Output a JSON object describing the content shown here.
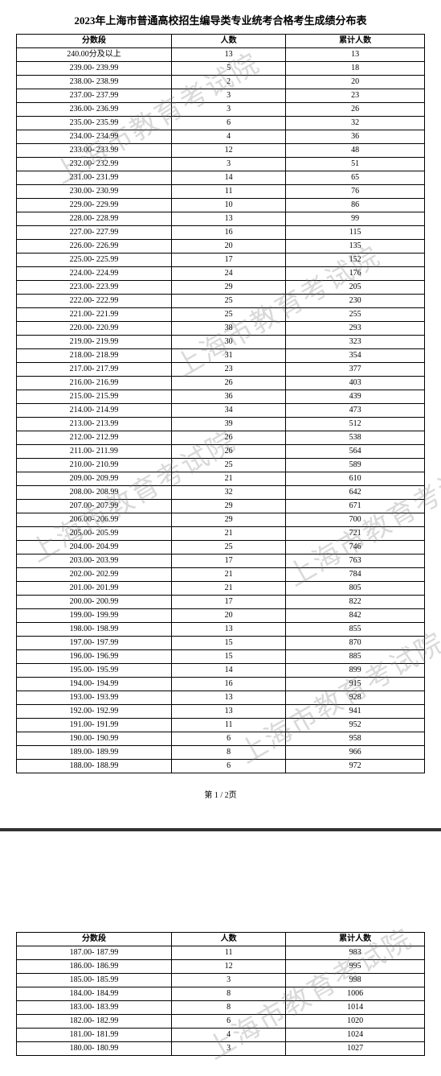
{
  "title": "2023年上海市普通高校招生编导类专业统考合格考生成绩分布表",
  "columns": [
    "分数段",
    "人数",
    "累计人数"
  ],
  "page1_rows": [
    [
      "240.00分及以上",
      "13",
      "13"
    ],
    [
      "239.00- 239.99",
      "5",
      "18"
    ],
    [
      "238.00- 238.99",
      "2",
      "20"
    ],
    [
      "237.00- 237.99",
      "3",
      "23"
    ],
    [
      "236.00- 236.99",
      "3",
      "26"
    ],
    [
      "235.00- 235.99",
      "6",
      "32"
    ],
    [
      "234.00- 234.99",
      "4",
      "36"
    ],
    [
      "233.00- 233.99",
      "12",
      "48"
    ],
    [
      "232.00- 232.99",
      "3",
      "51"
    ],
    [
      "231.00- 231.99",
      "14",
      "65"
    ],
    [
      "230.00- 230.99",
      "11",
      "76"
    ],
    [
      "229.00- 229.99",
      "10",
      "86"
    ],
    [
      "228.00- 228.99",
      "13",
      "99"
    ],
    [
      "227.00- 227.99",
      "16",
      "115"
    ],
    [
      "226.00- 226.99",
      "20",
      "135"
    ],
    [
      "225.00- 225.99",
      "17",
      "152"
    ],
    [
      "224.00- 224.99",
      "24",
      "176"
    ],
    [
      "223.00- 223.99",
      "29",
      "205"
    ],
    [
      "222.00- 222.99",
      "25",
      "230"
    ],
    [
      "221.00- 221.99",
      "25",
      "255"
    ],
    [
      "220.00- 220.99",
      "38",
      "293"
    ],
    [
      "219.00- 219.99",
      "30",
      "323"
    ],
    [
      "218.00- 218.99",
      "31",
      "354"
    ],
    [
      "217.00- 217.99",
      "23",
      "377"
    ],
    [
      "216.00- 216.99",
      "26",
      "403"
    ],
    [
      "215.00- 215.99",
      "36",
      "439"
    ],
    [
      "214.00- 214.99",
      "34",
      "473"
    ],
    [
      "213.00- 213.99",
      "39",
      "512"
    ],
    [
      "212.00- 212.99",
      "26",
      "538"
    ],
    [
      "211.00- 211.99",
      "26",
      "564"
    ],
    [
      "210.00- 210.99",
      "25",
      "589"
    ],
    [
      "209.00- 209.99",
      "21",
      "610"
    ],
    [
      "208.00- 208.99",
      "32",
      "642"
    ],
    [
      "207.00- 207.99",
      "29",
      "671"
    ],
    [
      "206.00- 206.99",
      "29",
      "700"
    ],
    [
      "205.00- 205.99",
      "21",
      "721"
    ],
    [
      "204.00- 204.99",
      "25",
      "746"
    ],
    [
      "203.00- 203.99",
      "17",
      "763"
    ],
    [
      "202.00- 202.99",
      "21",
      "784"
    ],
    [
      "201.00- 201.99",
      "21",
      "805"
    ],
    [
      "200.00- 200.99",
      "17",
      "822"
    ],
    [
      "199.00- 199.99",
      "20",
      "842"
    ],
    [
      "198.00- 198.99",
      "13",
      "855"
    ],
    [
      "197.00- 197.99",
      "15",
      "870"
    ],
    [
      "196.00- 196.99",
      "15",
      "885"
    ],
    [
      "195.00- 195.99",
      "14",
      "899"
    ],
    [
      "194.00- 194.99",
      "16",
      "915"
    ],
    [
      "193.00- 193.99",
      "13",
      "928"
    ],
    [
      "192.00- 192.99",
      "13",
      "941"
    ],
    [
      "191.00- 191.99",
      "11",
      "952"
    ],
    [
      "190.00- 190.99",
      "6",
      "958"
    ],
    [
      "189.00- 189.99",
      "8",
      "966"
    ],
    [
      "188.00- 188.99",
      "6",
      "972"
    ]
  ],
  "page1_footer": "第 1 / 2页",
  "page2_rows": [
    [
      "187.00- 187.99",
      "11",
      "983"
    ],
    [
      "186.00- 186.99",
      "12",
      "995"
    ],
    [
      "185.00- 185.99",
      "3",
      "998"
    ],
    [
      "184.00- 184.99",
      "8",
      "1006"
    ],
    [
      "183.00- 183.99",
      "8",
      "1014"
    ],
    [
      "182.00- 182.99",
      "6",
      "1020"
    ],
    [
      "181.00- 181.99",
      "4",
      "1024"
    ],
    [
      "180.00- 180.99",
      "3",
      "1027"
    ]
  ],
  "watermark_text": "上海市教育考试院",
  "colors": {
    "text": "#000000",
    "border": "#000000",
    "background": "#ffffff",
    "watermark": "rgba(120,120,120,0.28)",
    "separator": "#333333"
  },
  "col_widths": [
    "38%",
    "28%",
    "34%"
  ]
}
